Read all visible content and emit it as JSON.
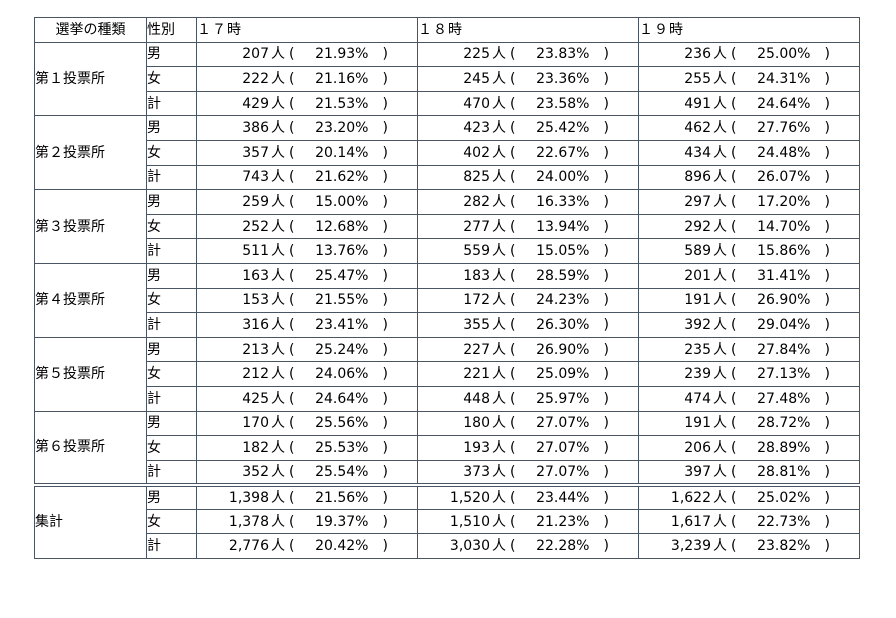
{
  "header": {
    "type_label": "選挙の種類",
    "sex_label": "性別",
    "times": [
      "１７時",
      "１８時",
      "１９時"
    ]
  },
  "unit": "人",
  "open_paren": "(",
  "close_paren": ")",
  "groups": [
    {
      "name": "第１投票所",
      "rows": [
        {
          "sex": "男",
          "cells": [
            {
              "count": "207",
              "pct": "21.93%"
            },
            {
              "count": "225",
              "pct": "23.83%"
            },
            {
              "count": "236",
              "pct": "25.00%"
            }
          ]
        },
        {
          "sex": "女",
          "cells": [
            {
              "count": "222",
              "pct": "21.16%"
            },
            {
              "count": "245",
              "pct": "23.36%"
            },
            {
              "count": "255",
              "pct": "24.31%"
            }
          ]
        },
        {
          "sex": "計",
          "cells": [
            {
              "count": "429",
              "pct": "21.53%"
            },
            {
              "count": "470",
              "pct": "23.58%"
            },
            {
              "count": "491",
              "pct": "24.64%"
            }
          ]
        }
      ]
    },
    {
      "name": "第２投票所",
      "rows": [
        {
          "sex": "男",
          "cells": [
            {
              "count": "386",
              "pct": "23.20%"
            },
            {
              "count": "423",
              "pct": "25.42%"
            },
            {
              "count": "462",
              "pct": "27.76%"
            }
          ]
        },
        {
          "sex": "女",
          "cells": [
            {
              "count": "357",
              "pct": "20.14%"
            },
            {
              "count": "402",
              "pct": "22.67%"
            },
            {
              "count": "434",
              "pct": "24.48%"
            }
          ]
        },
        {
          "sex": "計",
          "cells": [
            {
              "count": "743",
              "pct": "21.62%"
            },
            {
              "count": "825",
              "pct": "24.00%"
            },
            {
              "count": "896",
              "pct": "26.07%"
            }
          ]
        }
      ]
    },
    {
      "name": "第３投票所",
      "rows": [
        {
          "sex": "男",
          "cells": [
            {
              "count": "259",
              "pct": "15.00%"
            },
            {
              "count": "282",
              "pct": "16.33%"
            },
            {
              "count": "297",
              "pct": "17.20%"
            }
          ]
        },
        {
          "sex": "女",
          "cells": [
            {
              "count": "252",
              "pct": "12.68%"
            },
            {
              "count": "277",
              "pct": "13.94%"
            },
            {
              "count": "292",
              "pct": "14.70%"
            }
          ]
        },
        {
          "sex": "計",
          "cells": [
            {
              "count": "511",
              "pct": "13.76%"
            },
            {
              "count": "559",
              "pct": "15.05%"
            },
            {
              "count": "589",
              "pct": "15.86%"
            }
          ]
        }
      ]
    },
    {
      "name": "第４投票所",
      "rows": [
        {
          "sex": "男",
          "cells": [
            {
              "count": "163",
              "pct": "25.47%"
            },
            {
              "count": "183",
              "pct": "28.59%"
            },
            {
              "count": "201",
              "pct": "31.41%"
            }
          ]
        },
        {
          "sex": "女",
          "cells": [
            {
              "count": "153",
              "pct": "21.55%"
            },
            {
              "count": "172",
              "pct": "24.23%"
            },
            {
              "count": "191",
              "pct": "26.90%"
            }
          ]
        },
        {
          "sex": "計",
          "cells": [
            {
              "count": "316",
              "pct": "23.41%"
            },
            {
              "count": "355",
              "pct": "26.30%"
            },
            {
              "count": "392",
              "pct": "29.04%"
            }
          ]
        }
      ]
    },
    {
      "name": "第５投票所",
      "rows": [
        {
          "sex": "男",
          "cells": [
            {
              "count": "213",
              "pct": "25.24%"
            },
            {
              "count": "227",
              "pct": "26.90%"
            },
            {
              "count": "235",
              "pct": "27.84%"
            }
          ]
        },
        {
          "sex": "女",
          "cells": [
            {
              "count": "212",
              "pct": "24.06%"
            },
            {
              "count": "221",
              "pct": "25.09%"
            },
            {
              "count": "239",
              "pct": "27.13%"
            }
          ]
        },
        {
          "sex": "計",
          "cells": [
            {
              "count": "425",
              "pct": "24.64%"
            },
            {
              "count": "448",
              "pct": "25.97%"
            },
            {
              "count": "474",
              "pct": "27.48%"
            }
          ]
        }
      ]
    },
    {
      "name": "第６投票所",
      "rows": [
        {
          "sex": "男",
          "cells": [
            {
              "count": "170",
              "pct": "25.56%"
            },
            {
              "count": "180",
              "pct": "27.07%"
            },
            {
              "count": "191",
              "pct": "28.72%"
            }
          ]
        },
        {
          "sex": "女",
          "cells": [
            {
              "count": "182",
              "pct": "25.53%"
            },
            {
              "count": "193",
              "pct": "27.07%"
            },
            {
              "count": "206",
              "pct": "28.89%"
            }
          ]
        },
        {
          "sex": "計",
          "cells": [
            {
              "count": "352",
              "pct": "25.54%"
            },
            {
              "count": "373",
              "pct": "27.07%"
            },
            {
              "count": "397",
              "pct": "28.81%"
            }
          ]
        }
      ]
    },
    {
      "name": "集計",
      "rows": [
        {
          "sex": "男",
          "cells": [
            {
              "count": "1,398",
              "pct": "21.56%"
            },
            {
              "count": "1,520",
              "pct": "23.44%"
            },
            {
              "count": "1,622",
              "pct": "25.02%"
            }
          ]
        },
        {
          "sex": "女",
          "cells": [
            {
              "count": "1,378",
              "pct": "19.37%"
            },
            {
              "count": "1,510",
              "pct": "21.23%"
            },
            {
              "count": "1,617",
              "pct": "22.73%"
            }
          ]
        },
        {
          "sex": "計",
          "cells": [
            {
              "count": "2,776",
              "pct": "20.42%"
            },
            {
              "count": "3,030",
              "pct": "22.28%"
            },
            {
              "count": "3,239",
              "pct": "23.82%"
            }
          ]
        }
      ]
    }
  ]
}
